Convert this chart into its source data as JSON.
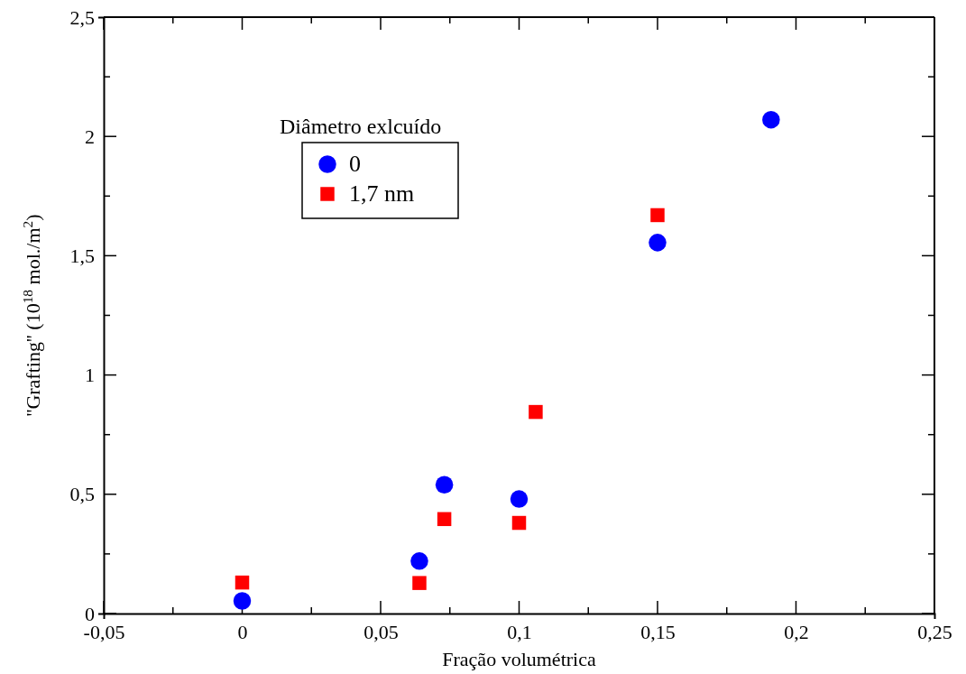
{
  "chart_data": {
    "type": "scatter",
    "xlabel": "Fração volumétrica",
    "ylabel": "''Grafting'' (10$^{18}$ mol./m$^{2}$)",
    "legend_title": "Diâmetro exlcuído",
    "legend": "top left",
    "grid": false,
    "xlim": [
      -0.05,
      0.25
    ],
    "ylim": [
      0,
      2.5
    ],
    "xticks": [
      {
        "value": -0.05,
        "label": "-0,05"
      },
      {
        "value": -0.025,
        "label": null
      },
      0,
      {
        "value": 0.025,
        "label": null
      },
      {
        "value": 0.05,
        "label": "0,05"
      },
      {
        "value": 0.075,
        "label": null
      },
      {
        "value": 0.1,
        "label": "0,1"
      },
      {
        "value": 0.125,
        "label": null
      },
      {
        "value": 0.15,
        "label": "0,15"
      },
      {
        "value": 0.175,
        "label": null
      },
      {
        "value": 0.2,
        "label": "0,2"
      },
      {
        "value": 0.225,
        "label": null
      },
      {
        "value": 0.25,
        "label": "0,25"
      }
    ],
    "yticks": [
      0,
      {
        "value": 0.25,
        "label": null
      },
      {
        "value": 0.5,
        "label": "0,5"
      },
      {
        "value": 0.75,
        "label": null
      },
      1,
      {
        "value": 1.25,
        "label": null
      },
      {
        "value": 1.5,
        "label": "1,5"
      },
      {
        "value": 1.75,
        "label": null
      },
      2,
      {
        "value": 2.25,
        "label": null
      },
      {
        "value": 2.5,
        "label": "2,5"
      }
    ],
    "series": [
      {
        "name": "0",
        "color": "#0000ff",
        "marker": "circle",
        "x": [
          0,
          0.064,
          0.073,
          0.1,
          0.15,
          0.191
        ],
        "values": [
          0.053,
          0.22,
          0.54,
          0.48,
          1.555,
          2.07
        ]
      },
      {
        "name": "1,7 nm",
        "color": "#ff0000",
        "marker": "square",
        "x": [
          0,
          0.064,
          0.073,
          0.1,
          0.106,
          0.15
        ],
        "values": [
          0.13,
          0.128,
          0.396,
          0.38,
          0.845,
          1.67
        ]
      }
    ]
  }
}
